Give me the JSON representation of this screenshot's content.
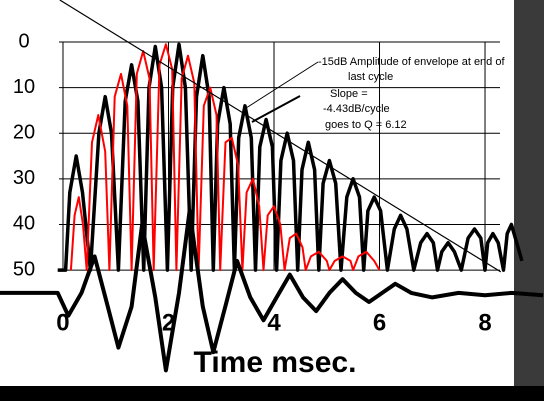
{
  "chart_data": {
    "type": "line",
    "xlabel": "Time msec.",
    "annotations": [
      "-15dB Amplitude of envelope at end of",
      "last cycle",
      "Slope =",
      "-4.43dB/cycle",
      "goes to Q = 6.12"
    ],
    "xlim": [
      -1.194,
      9.118
    ],
    "ylim": [
      78.7,
      -9.2
    ],
    "xticks": [
      0,
      2,
      4,
      6,
      8
    ],
    "yticks": [
      0,
      10,
      20,
      30,
      40,
      50
    ],
    "grid": true,
    "series": [
      {
        "color": "#000000",
        "width": 3.5,
        "x": [
          -0.1,
          0.05,
          0.13,
          0.25,
          0.37,
          0.52,
          0.68,
          0.8,
          0.92,
          1.05,
          1.18,
          1.3,
          1.42,
          1.53,
          1.63,
          1.75,
          1.87,
          1.98,
          2.08,
          2.2,
          2.32,
          2.43,
          2.53,
          2.65,
          2.77,
          2.85,
          2.93,
          3.05,
          3.17,
          3.25,
          3.33,
          3.45,
          3.57,
          3.65,
          3.73,
          3.85,
          3.97,
          4.05,
          4.13,
          4.25,
          4.37,
          4.45,
          4.53,
          4.65,
          4.77,
          4.85,
          4.93,
          5.05,
          5.17,
          5.27,
          5.38,
          5.5,
          5.62,
          5.7,
          5.78,
          5.9,
          6.02,
          6.15,
          6.28,
          6.4,
          6.52,
          6.65,
          6.78,
          6.9,
          7.02,
          7.1,
          7.18,
          7.3,
          7.42,
          7.55,
          7.68,
          7.8,
          7.92,
          8.0,
          8.05,
          8.15,
          8.25,
          8.35,
          8.42,
          8.5,
          8.6,
          8.7
        ],
        "values": [
          50,
          50,
          33,
          25,
          33,
          50,
          20,
          12,
          20,
          50,
          13,
          5,
          13,
          50,
          10,
          1,
          10,
          50,
          10,
          0.5,
          10,
          50,
          12,
          3,
          12,
          50,
          18,
          10,
          18,
          50,
          21,
          14,
          21,
          50,
          23,
          17,
          23,
          50,
          26,
          20,
          26,
          50,
          28,
          22,
          28,
          50,
          31,
          26,
          31,
          50,
          34,
          30,
          34,
          50,
          37,
          34,
          37,
          50,
          41,
          38,
          41,
          50,
          44,
          42,
          44,
          50,
          46,
          44,
          46,
          50,
          43,
          41,
          43,
          50,
          44,
          42,
          44,
          50,
          42,
          40,
          44,
          48
        ]
      },
      {
        "color": "#ff0000",
        "width": 2,
        "x": [
          0.15,
          0.22,
          0.3,
          0.38,
          0.45,
          0.55,
          0.67,
          0.8,
          0.88,
          0.98,
          1.1,
          1.22,
          1.3,
          1.4,
          1.52,
          1.64,
          1.72,
          1.83,
          1.95,
          2.07,
          2.15,
          2.25,
          2.37,
          2.49,
          2.57,
          2.67,
          2.79,
          2.91,
          2.98,
          3.08,
          3.2,
          3.32,
          3.4,
          3.48,
          3.6,
          3.72,
          3.8,
          3.88,
          4.0,
          4.12,
          4.2,
          4.3,
          4.42,
          4.54,
          4.6,
          4.7,
          4.85,
          5.0,
          5.05,
          5.15,
          5.3,
          5.45,
          5.5,
          5.6,
          5.75,
          5.9,
          6.0
        ],
        "values": [
          50,
          38,
          34,
          40,
          50,
          22,
          16,
          24,
          50,
          12,
          7,
          14,
          50,
          7,
          2,
          8,
          50,
          5,
          0.5,
          6,
          50,
          8,
          3,
          9,
          50,
          14,
          10,
          16,
          50,
          22,
          21,
          27,
          50,
          33,
          30,
          36,
          50,
          38,
          36,
          40,
          50,
          43,
          42,
          45,
          50,
          47,
          46,
          48,
          50,
          48,
          47,
          48,
          50,
          47,
          46,
          48,
          50
        ]
      },
      {
        "color": "#000000",
        "width": 4,
        "x": [
          -1.2,
          -0.1,
          0.1,
          0.35,
          0.6,
          0.85,
          1.05,
          1.3,
          1.5,
          1.75,
          1.95,
          2.2,
          2.4,
          2.65,
          2.85,
          3.1,
          3.3,
          3.55,
          3.8,
          4.05,
          4.3,
          4.55,
          4.8,
          5.05,
          5.3,
          5.55,
          5.8,
          6.05,
          6.3,
          6.6,
          7.0,
          7.5,
          8.0,
          8.5,
          9.1
        ],
        "values": [
          55,
          55,
          60,
          55,
          47,
          58,
          67,
          58,
          40,
          56,
          72,
          55,
          37,
          58,
          68,
          57,
          48,
          56,
          61,
          56,
          51,
          56,
          59,
          55,
          52,
          55,
          57,
          55,
          53,
          55,
          56,
          55,
          55.5,
          55,
          55.5
        ]
      },
      {
        "color": "#000000",
        "width": 1.2,
        "x": [
          -0.06,
          8.3
        ],
        "values": [
          -9.2,
          50.4
        ]
      }
    ]
  }
}
